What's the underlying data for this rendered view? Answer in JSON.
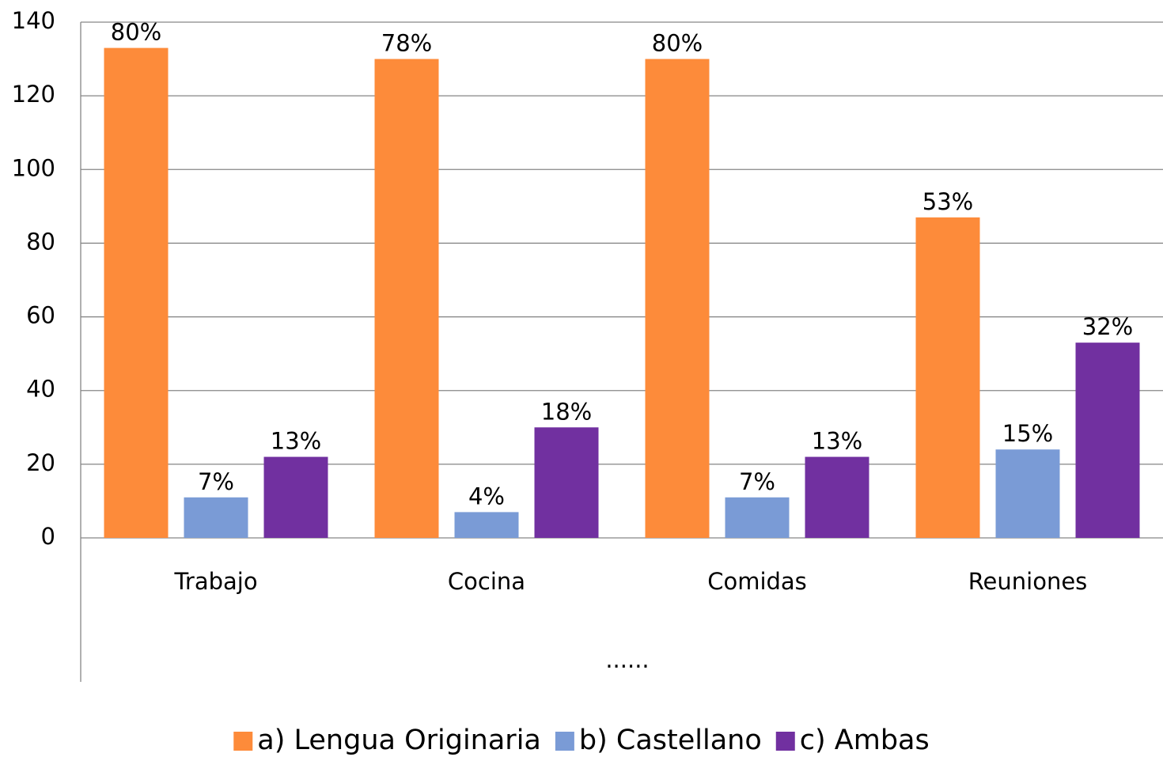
{
  "chart_data": {
    "type": "bar",
    "categories": [
      "Trabajo",
      "Cocina",
      "Comidas",
      "Reuniones"
    ],
    "x_group_label": "......",
    "series": [
      {
        "name": "a) Lengua Originaria",
        "color": "#fd8b3a",
        "values": [
          133,
          130,
          130,
          87
        ],
        "value_labels": [
          "80%",
          "78%",
          "80%",
          "53%"
        ]
      },
      {
        "name": "b) Castellano",
        "color": "#7a9bd6",
        "values": [
          11,
          7,
          11,
          24
        ],
        "value_labels": [
          "7%",
          "4%",
          "7%",
          "15%"
        ]
      },
      {
        "name": "c) Ambas",
        "color": "#7130a0",
        "values": [
          22,
          30,
          22,
          53
        ],
        "value_labels": [
          "13%",
          "18%",
          "13%",
          "32%"
        ]
      }
    ],
    "ylim": [
      0,
      140
    ],
    "yticks": [
      0,
      20,
      40,
      60,
      80,
      100,
      120,
      140
    ],
    "grid": true,
    "legend": "bottom"
  }
}
